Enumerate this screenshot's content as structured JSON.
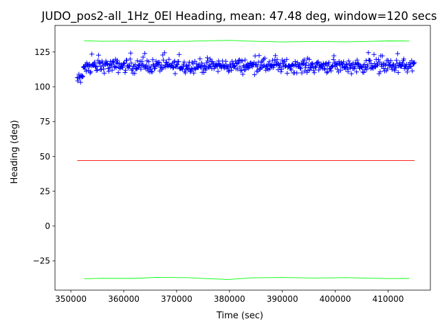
{
  "chart_data": {
    "type": "scatter",
    "title": "JUDO_pos2-all_1Hz_0El Heading, mean: 47.48 deg, window=120 secs",
    "xlabel": "Time (sec)",
    "ylabel": "Heading (deg)",
    "xlim": [
      347000,
      418000
    ],
    "ylim": [
      -46,
      144
    ],
    "xticks": [
      350000,
      360000,
      370000,
      380000,
      390000,
      400000,
      410000
    ],
    "xtick_labels": [
      "350000",
      "360000",
      "370000",
      "380000",
      "390000",
      "400000",
      "410000"
    ],
    "yticks": [
      -25,
      0,
      25,
      50,
      75,
      100,
      125
    ],
    "ytick_labels": [
      "−25",
      "0",
      "25",
      "50",
      "75",
      "100",
      "125"
    ],
    "grid": false,
    "series": [
      {
        "marker": "+",
        "color": "#0000ff",
        "x_range": [
          351200,
          415000
        ],
        "point_count": 600,
        "y_typical_range": [
          108,
          122
        ],
        "y_center": 114.5
      },
      {
        "line": true,
        "color": "#ff0000",
        "x": [
          351200,
          415000
        ],
        "y": [
          47.0,
          47.0
        ]
      },
      {
        "line": true,
        "color": "#00ff00",
        "x": [
          352500,
          356000,
          362000,
          366000,
          372000,
          376000,
          380000,
          384000,
          390000,
          396000,
          402000,
          406000,
          410000,
          414000
        ],
        "y": [
          133.0,
          132.6,
          132.8,
          132.3,
          132.6,
          133.0,
          133.3,
          132.7,
          132.1,
          132.5,
          132.2,
          132.5,
          132.9,
          132.8
        ]
      },
      {
        "line": true,
        "color": "#00ff00",
        "x": [
          352500,
          356000,
          362000,
          366000,
          372000,
          376000,
          380000,
          384000,
          390000,
          396000,
          402000,
          406000,
          410000,
          414000
        ],
        "y": [
          -37.8,
          -37.5,
          -37.6,
          -36.8,
          -37.0,
          -37.8,
          -38.3,
          -37.2,
          -36.9,
          -37.3,
          -37.0,
          -37.4,
          -37.7,
          -37.6
        ]
      }
    ]
  }
}
